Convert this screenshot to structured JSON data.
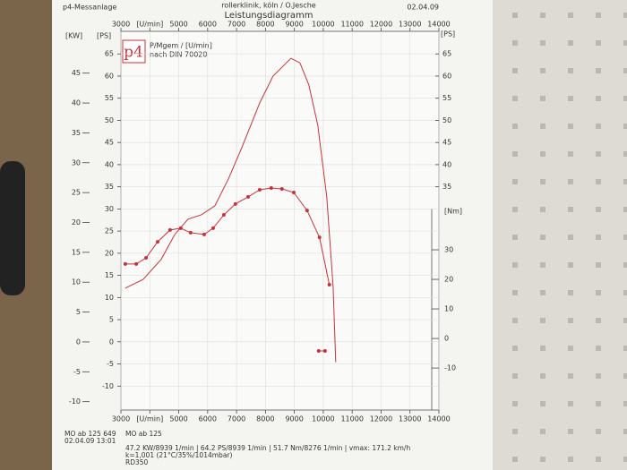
{
  "chart_data": {
    "type": "line",
    "header_left": "p4-Messanlage",
    "header_center": "rollerklinik, köln / O.Jesche",
    "title": "Leistungsdiagramm",
    "date": "02.04.09",
    "logo": "p4",
    "legend_lines": [
      "P/Mgem / [U/min]",
      "nach DIN 70020"
    ],
    "kw_label": "[KW]",
    "y_label": "[PS]",
    "y_right_label": "[PS]",
    "y2_label": "[Nm]",
    "xlim": [
      3000,
      14000
    ],
    "xticks": [
      3000,
      {
        "value": 4000,
        "label": "[U/min]"
      },
      5000,
      6000,
      7000,
      8000,
      9000,
      10000,
      11000,
      12000,
      13000,
      14000
    ],
    "ylim": [
      -15.4,
      70.1
    ],
    "yticks": [
      -10,
      -5,
      0,
      5,
      10,
      15,
      20,
      25,
      30,
      35,
      40,
      45,
      50,
      55,
      60,
      65
    ],
    "yticks_right": [
      35,
      40,
      45,
      50,
      55,
      60,
      65
    ],
    "kwlim": [
      -11.4,
      52
    ],
    "kwticks": [
      -10,
      -5,
      0,
      5,
      10,
      15,
      20,
      25,
      30,
      35,
      40,
      45
    ],
    "y2lim": [
      -24.2,
      103.9
    ],
    "y2ticks": [
      -10,
      0,
      10,
      20,
      30
    ],
    "grid": true,
    "series": [
      {
        "color": "#c8323a",
        "axis": "y",
        "markers": false,
        "x": [
          3150,
          3770,
          4390,
          4860,
          5320,
          5790,
          6250,
          6720,
          7180,
          7800,
          8260,
          8880,
          9190,
          9500,
          9810,
          10120,
          10340,
          10430
        ],
        "values": [
          12.1,
          14.1,
          18.6,
          24.2,
          27.7,
          28.7,
          30.7,
          36.8,
          43.8,
          53.9,
          60.0,
          64.0,
          63.0,
          58.0,
          48.9,
          32.7,
          12.5,
          -4.6
        ]
      },
      {
        "color": "#c8323a",
        "axis": "y2",
        "markers": true,
        "x": [
          3150,
          3530,
          3870,
          4270,
          4700,
          5070,
          5410,
          5880,
          6190,
          6560,
          6960,
          7400,
          7800,
          8200,
          8570,
          8980,
          9440,
          9870,
          10210,
          null,
          9840,
          10060
        ],
        "values": [
          25.2,
          25.2,
          27.3,
          32.7,
          36.7,
          37.3,
          35.8,
          35.2,
          37.3,
          41.8,
          45.5,
          47.9,
          50.3,
          50.9,
          50.6,
          49.4,
          43.3,
          34.2,
          18.2,
          null,
          -4.2,
          -4.2
        ]
      }
    ],
    "footer": [
      "MO ab 125 649",
      "MO ab 125",
      "02.04.09  13:01",
      "47.2 KW/8939 1/min | 64.2 PS/8939 1/min | 51.7 Nm/8276 1/min | vmax: 171.2 km/h",
      "k=1,001 (21°C/35%/1014mbar)",
      "RD350"
    ]
  }
}
